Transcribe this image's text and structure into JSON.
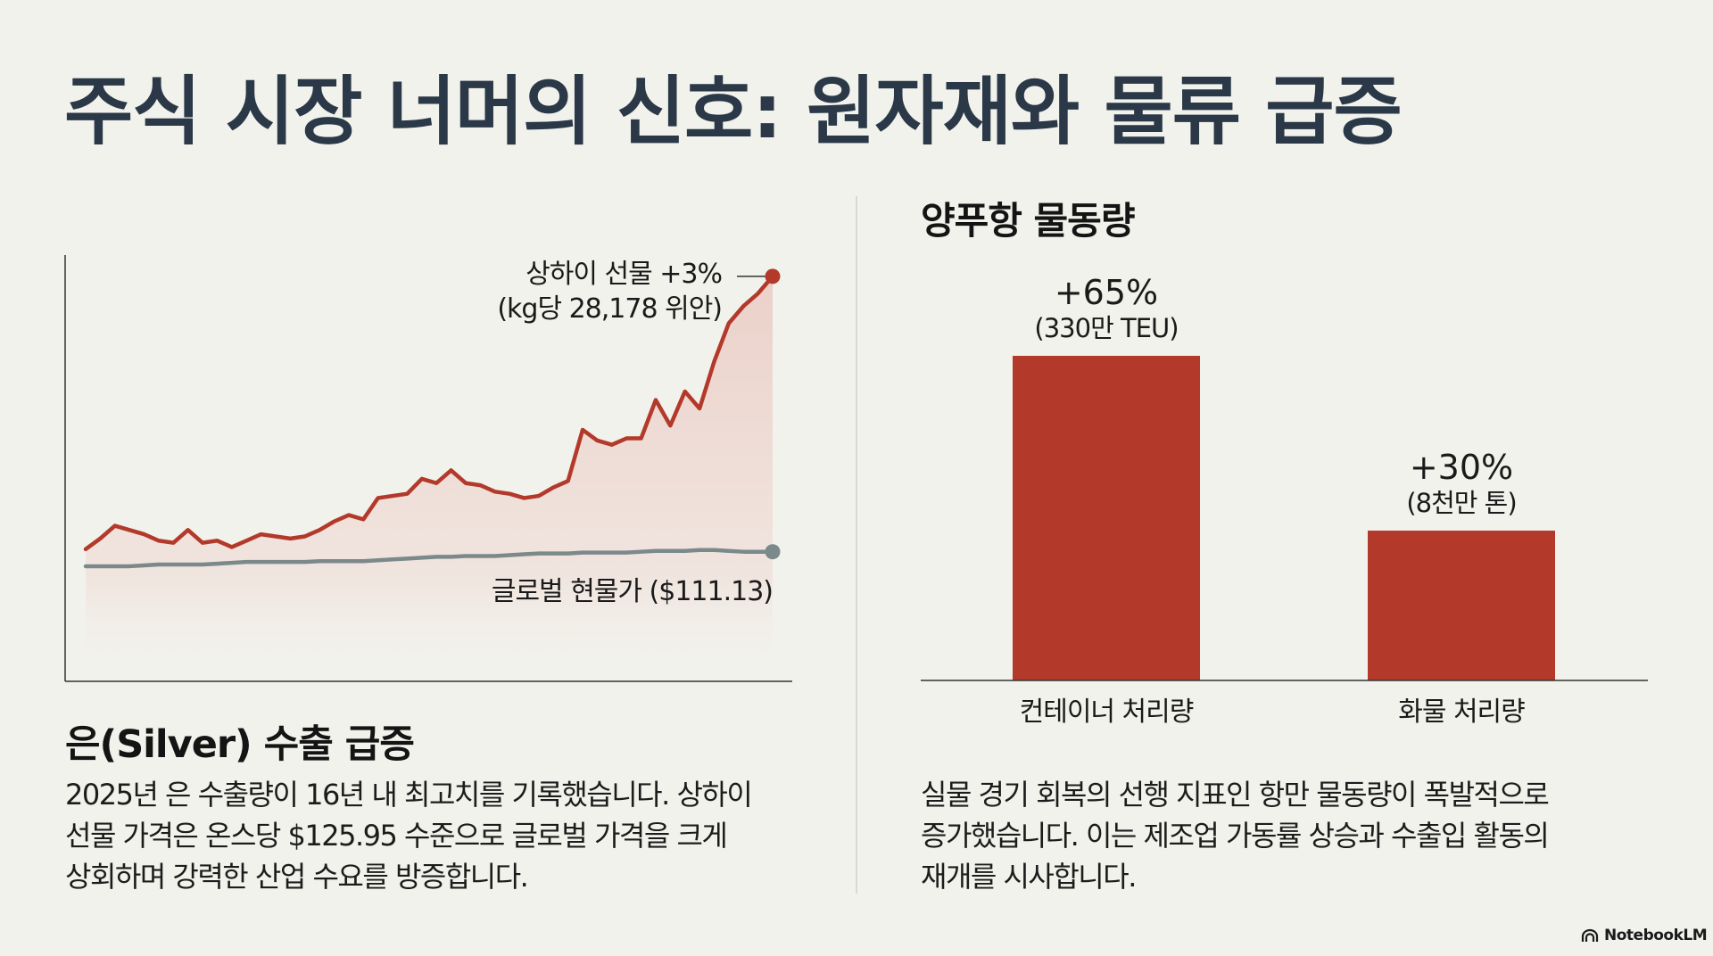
{
  "title": "주식 시장 너머의 신호: 원자재와 물류 급증",
  "left": {
    "heading": "은(Silver) 수출 급증",
    "paragraph_lines": [
      "2025년 은 수출량이 16년 내 최고치를 기록했습니다. 상하이",
      "선물 가격은 온스당 $125.95 수준으로 글로벌 가격을 크게",
      "상회하며 강력한 산업 수요를 방증합니다."
    ]
  },
  "right": {
    "heading": "양푸항 물동량",
    "paragraph_lines": [
      "실물 경기 회복의 선행 지표인 항만 물동량이 폭발적으로",
      "증가했습니다. 이는 제조업 가동률 상승과 수출입 활동의",
      "재개를 시사합니다."
    ]
  },
  "colors": {
    "background": "#f2f2ec",
    "title": "#2a3847",
    "accent_red": "#b3392b",
    "spot_gray": "#7b898b",
    "axis": "#333333"
  },
  "logo": {
    "text": "NotebookLM",
    "icon": "notebooklm-logo-icon"
  },
  "chart_data": [
    {
      "type": "line",
      "title": "",
      "xlabel": "",
      "ylabel": "",
      "grid": false,
      "ylim": [
        0,
        100
      ],
      "x": [
        0,
        1,
        2,
        3,
        4,
        5,
        6,
        7,
        8,
        9,
        10,
        11,
        12,
        13,
        14,
        15,
        16,
        17,
        18,
        19,
        20,
        21,
        22,
        23,
        24,
        25,
        26,
        27,
        28,
        29,
        30,
        31,
        32,
        33,
        34,
        35,
        36,
        37,
        38,
        39,
        40,
        41,
        42,
        43,
        44,
        45,
        46,
        47
      ],
      "series": [
        {
          "name": "상하이 선물",
          "annotation": [
            "상하이 선물 +3%",
            "(kg당 28,178 위안)"
          ],
          "values": [
            31,
            33.5,
            36.5,
            35.5,
            34.5,
            33,
            32.5,
            35.5,
            32.5,
            33,
            31.5,
            33,
            34.5,
            34,
            33.5,
            34,
            35.5,
            37.5,
            39,
            38,
            43,
            43.5,
            44,
            47.5,
            46.5,
            49.5,
            46.5,
            46,
            44.5,
            44,
            43,
            43.5,
            45.5,
            47,
            59,
            56.5,
            55.5,
            57,
            57,
            66,
            60,
            68,
            64,
            75,
            84,
            88,
            91,
            95
          ]
        },
        {
          "name": "글로벌 현물가",
          "annotation": [
            "글로벌 현물가 ($111.13)"
          ],
          "values": [
            27,
            27,
            27,
            27,
            27.2,
            27.4,
            27.4,
            27.4,
            27.4,
            27.6,
            27.8,
            28,
            28,
            28,
            28,
            28,
            28.2,
            28.2,
            28.2,
            28.2,
            28.4,
            28.6,
            28.8,
            29,
            29.2,
            29.2,
            29.4,
            29.4,
            29.4,
            29.6,
            29.8,
            30,
            30,
            30,
            30.2,
            30.2,
            30.2,
            30.2,
            30.4,
            30.6,
            30.6,
            30.6,
            30.8,
            30.8,
            30.6,
            30.4,
            30.4,
            30.4
          ]
        }
      ]
    },
    {
      "type": "bar",
      "title": "양푸항 물동량",
      "categories": [
        "컨테이너 처리량",
        "화물 처리량"
      ],
      "values": [
        65,
        30
      ],
      "unit": "%",
      "value_labels": [
        "+65%",
        "+30%"
      ],
      "sub_labels": [
        "(330만 TEU)",
        "(8천만 톤)"
      ],
      "ylim": [
        0,
        80
      ],
      "xlabel": "",
      "ylabel": "",
      "grid": false
    }
  ]
}
